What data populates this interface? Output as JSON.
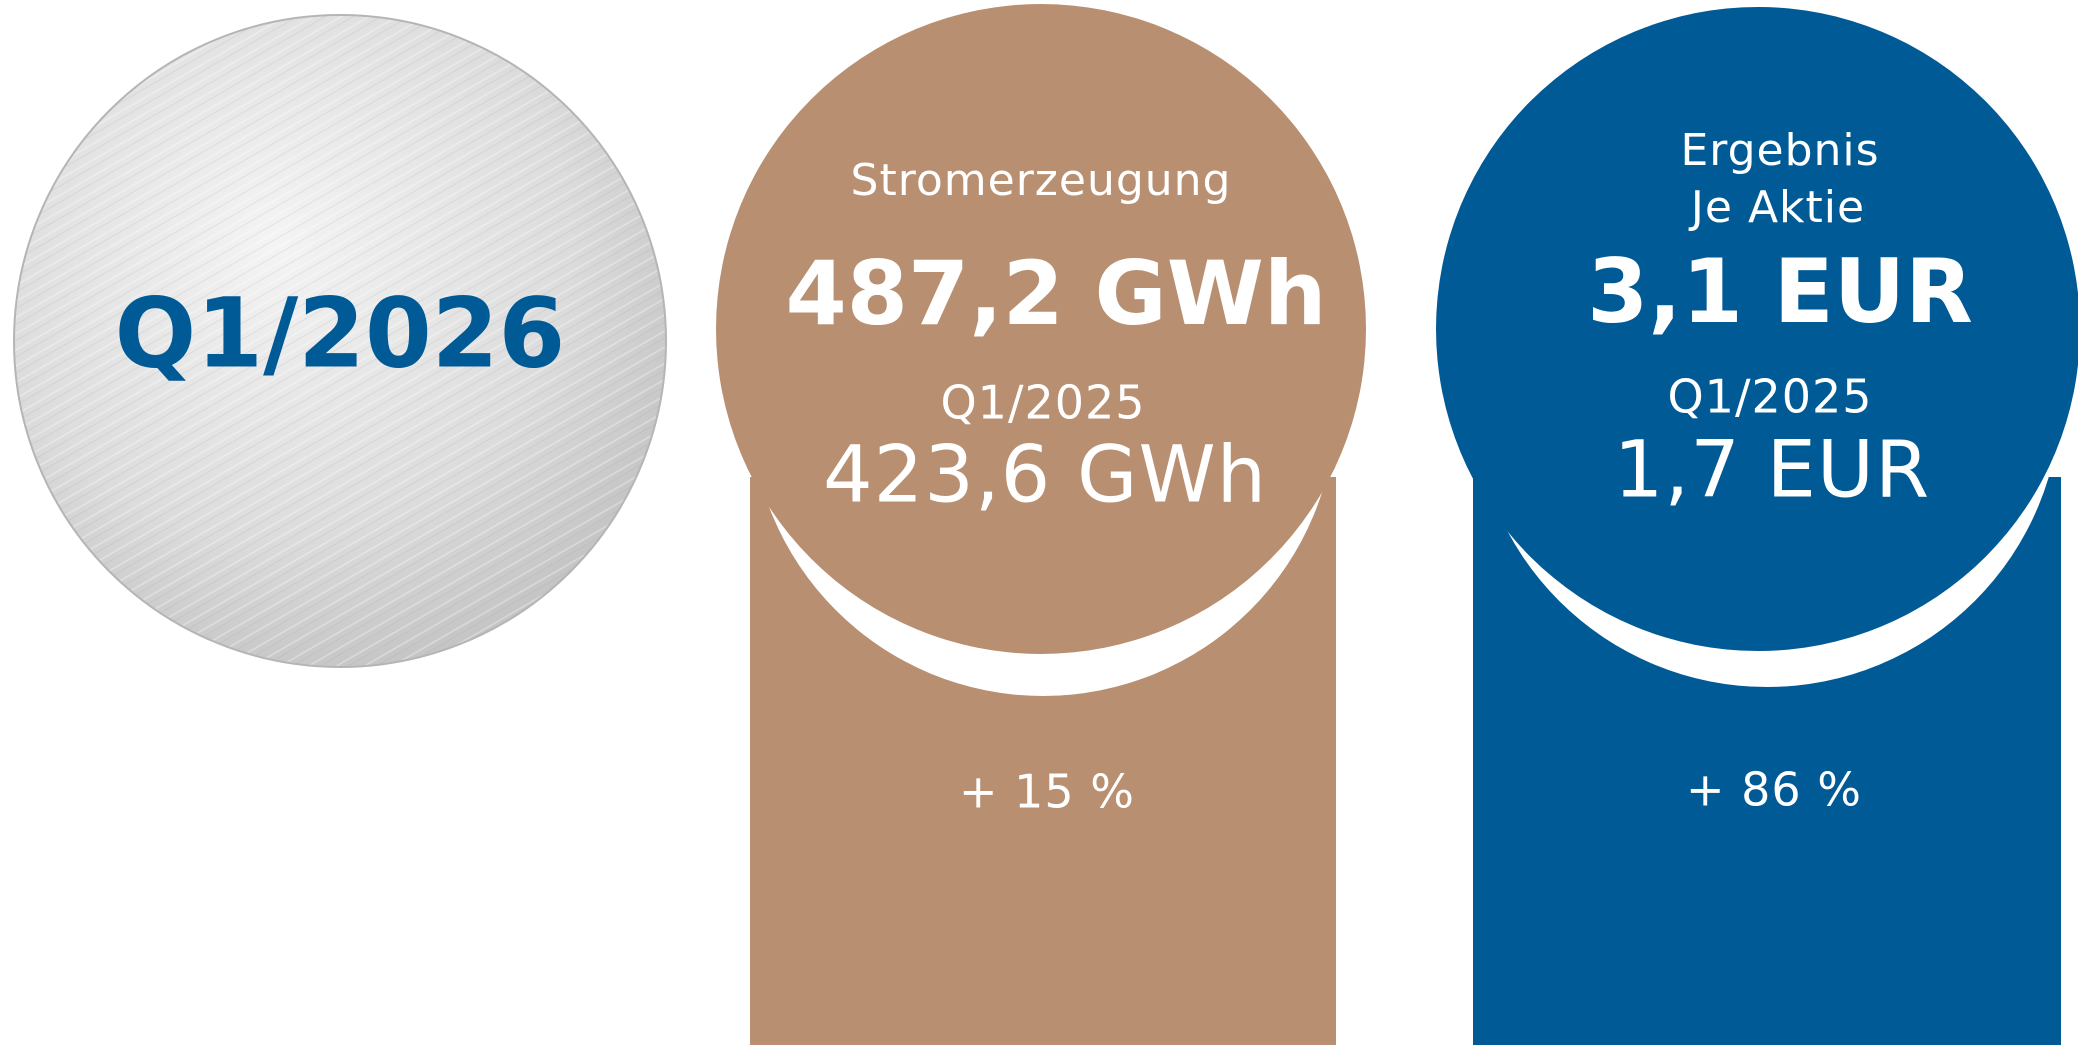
{
  "badge": {
    "label": "Q1/2026"
  },
  "cards": [
    {
      "title_lines": [
        "Stromerzeugung"
      ],
      "value": "487,2 GWh",
      "prev_label": "Q1/2025",
      "prev_value": "423,6 GWh",
      "change": "+ 15 %"
    },
    {
      "title_lines": [
        "Ergebnis",
        "Je Aktie"
      ],
      "value": "3,1 EUR",
      "prev_label": "Q1/2025",
      "prev_value": "1,7 EUR",
      "change": "+ 86 %"
    }
  ]
}
